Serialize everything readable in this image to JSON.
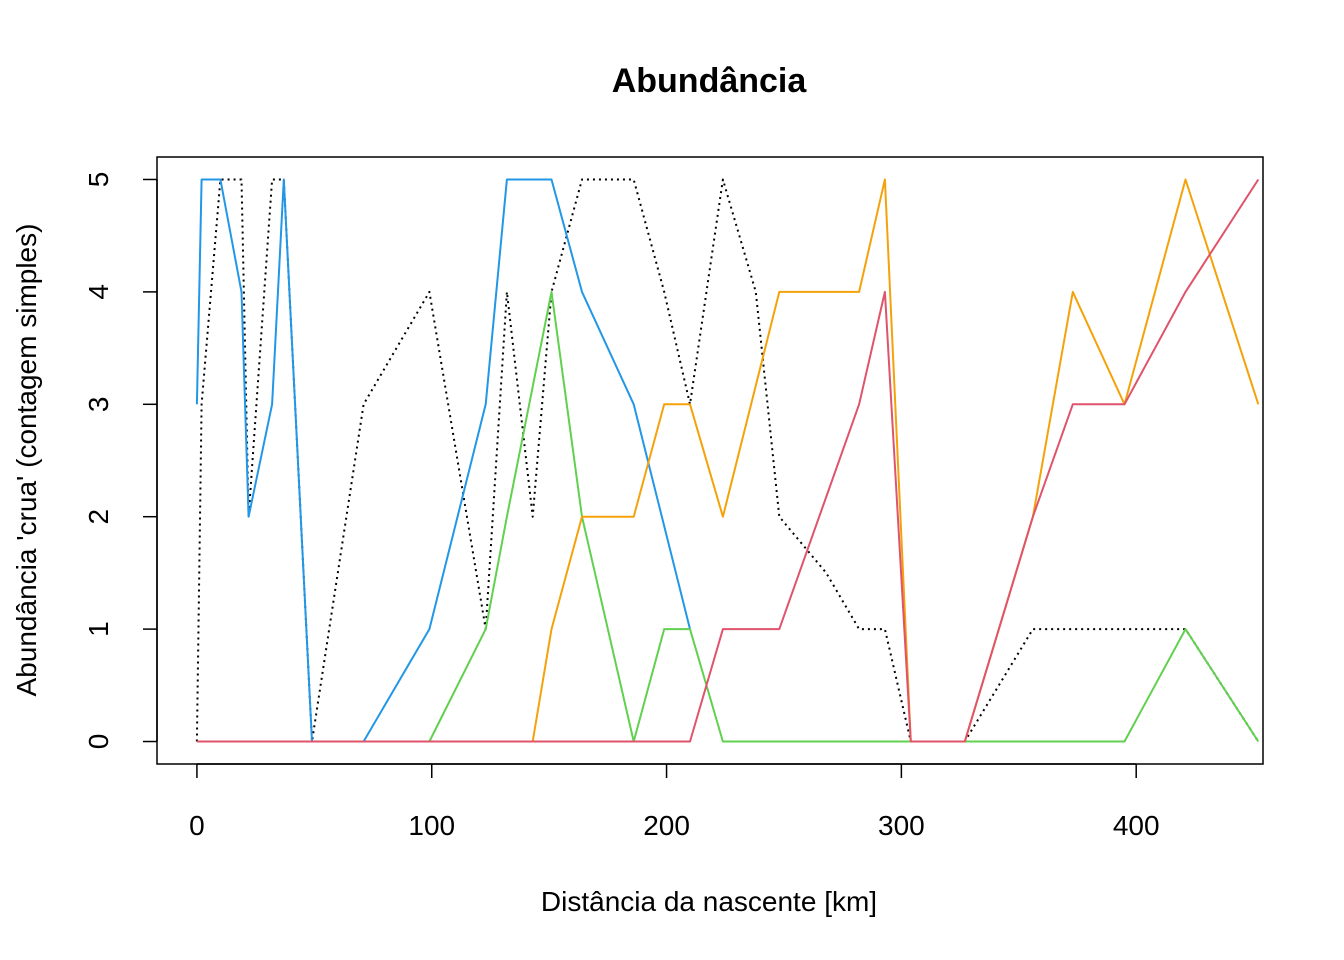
{
  "chart_data": {
    "type": "line",
    "title": "Abundância",
    "xlabel": "Distância da nascente [km]",
    "ylabel": "Abundância 'crua' (contagem simples)",
    "xlim": [
      -17,
      454
    ],
    "ylim": [
      -0.2,
      5.2
    ],
    "xticks": [
      0,
      100,
      200,
      300,
      400
    ],
    "yticks": [
      0,
      1,
      2,
      3,
      4,
      5
    ],
    "grid": false,
    "legend": "none",
    "series": [
      {
        "color": "#000000",
        "dash": "dotted",
        "x": [
          0,
          2,
          10,
          16,
          19,
          22,
          32,
          37,
          49,
          71,
          99,
          123,
          132,
          143,
          151,
          164,
          176,
          186,
          199,
          210,
          224,
          238,
          248,
          268,
          282,
          293,
          304,
          327,
          356,
          373,
          395,
          421,
          452
        ],
        "y": [
          0,
          3,
          5,
          5,
          5,
          2,
          5,
          5,
          0,
          3,
          4,
          1,
          4,
          2,
          4,
          5,
          5,
          5,
          4,
          3,
          5,
          4,
          2,
          1.5,
          1,
          1,
          0,
          0,
          1,
          1,
          1,
          1,
          0
        ]
      },
      {
        "color": "#2297E6",
        "dash": "solid",
        "x": [
          0,
          2,
          10,
          19,
          22,
          32,
          37,
          49,
          71,
          99,
          123,
          132,
          151,
          164,
          186,
          210
        ],
        "y": [
          3,
          5,
          5,
          4,
          2,
          3,
          5,
          0,
          0,
          1,
          3,
          5,
          5,
          4,
          3,
          1
        ]
      },
      {
        "color": "#61D04F",
        "dash": "solid",
        "x": [
          0,
          99,
          123,
          132,
          151,
          164,
          186,
          199,
          210,
          224,
          395,
          421,
          452
        ],
        "y": [
          0,
          0,
          1,
          2,
          4,
          2,
          0,
          1,
          1,
          0,
          0,
          1,
          0
        ]
      },
      {
        "color": "#F5A20A",
        "dash": "solid",
        "x": [
          0,
          143,
          151,
          164,
          186,
          199,
          210,
          224,
          248,
          282,
          293,
          304,
          327,
          356,
          373,
          395,
          421,
          452
        ],
        "y": [
          0,
          0,
          1,
          2,
          2,
          3,
          3,
          2,
          4,
          4,
          5,
          0,
          0,
          2,
          4,
          3,
          5,
          3
        ]
      },
      {
        "color": "#DF536B",
        "dash": "solid",
        "x": [
          0,
          210,
          224,
          248,
          282,
          293,
          304,
          327,
          356,
          373,
          395,
          421,
          452
        ],
        "y": [
          0,
          0,
          1,
          1,
          3,
          4,
          0,
          0,
          2,
          3,
          3,
          4,
          5
        ]
      }
    ]
  }
}
